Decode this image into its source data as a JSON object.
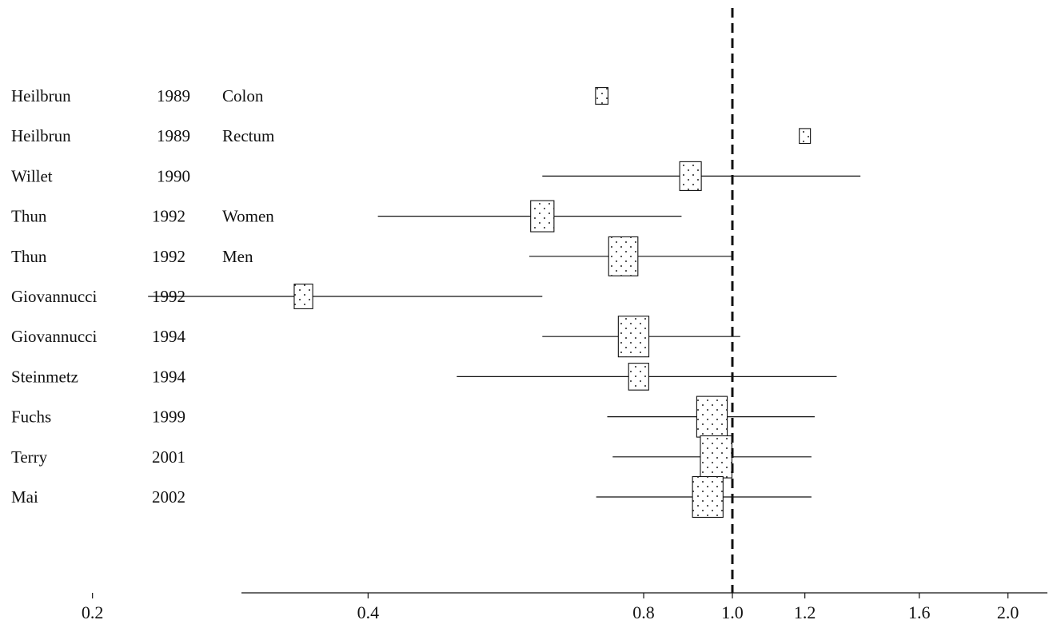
{
  "chart_data": {
    "type": "forest",
    "title": "",
    "xlabel": "",
    "ylabel": "",
    "x_scale": "log",
    "x_ticks": [
      "0.2",
      "0.4",
      "0.8",
      "1.0",
      "1.2",
      "1.6",
      "2.0"
    ],
    "reference_line": 1.0,
    "colors": {
      "ink": "#111111",
      "box_fill": "#ffffff"
    },
    "studies": [
      {
        "author": "Heilbrun",
        "year": "1989",
        "subgroup": "Colon",
        "estimate": 0.72,
        "ci": null,
        "weight": 1
      },
      {
        "author": "Heilbrun",
        "year": "1989",
        "subgroup": "Rectum",
        "estimate": 1.2,
        "ci": null,
        "weight": 0.8
      },
      {
        "author": "Willet",
        "year": "1990",
        "subgroup": "",
        "estimate": 0.9,
        "ci": [
          0.62,
          1.38
        ],
        "weight": 3
      },
      {
        "author": "Thun",
        "year": "1992",
        "subgroup": "Women",
        "estimate": 0.62,
        "ci": [
          0.41,
          0.88
        ],
        "weight": 3.5
      },
      {
        "author": "Thun",
        "year": "1992",
        "subgroup": "Men",
        "estimate": 0.76,
        "ci": [
          0.6,
          1.0
        ],
        "weight": 5.5
      },
      {
        "author": "Giovannucci",
        "year": "1992",
        "subgroup": "",
        "estimate": 0.34,
        "ci": [
          0.23,
          0.62
        ],
        "weight": 2.2
      },
      {
        "author": "Giovannucci",
        "year": "1994",
        "subgroup": "",
        "estimate": 0.78,
        "ci": [
          0.62,
          1.02
        ],
        "weight": 6
      },
      {
        "author": "Steinmetz",
        "year": "1994",
        "subgroup": "",
        "estimate": 0.79,
        "ci": [
          0.5,
          1.3
        ],
        "weight": 2.6
      },
      {
        "author": "Fuchs",
        "year": "1999",
        "subgroup": "",
        "estimate": 0.95,
        "ci": [
          0.73,
          1.23
        ],
        "weight": 6
      },
      {
        "author": "Terry",
        "year": "2001",
        "subgroup": "",
        "estimate": 0.96,
        "ci": [
          0.74,
          1.22
        ],
        "weight": 6.4
      },
      {
        "author": "Mai",
        "year": "2002",
        "subgroup": "",
        "estimate": 0.94,
        "ci": [
          0.71,
          1.22
        ],
        "weight": 6
      }
    ]
  }
}
